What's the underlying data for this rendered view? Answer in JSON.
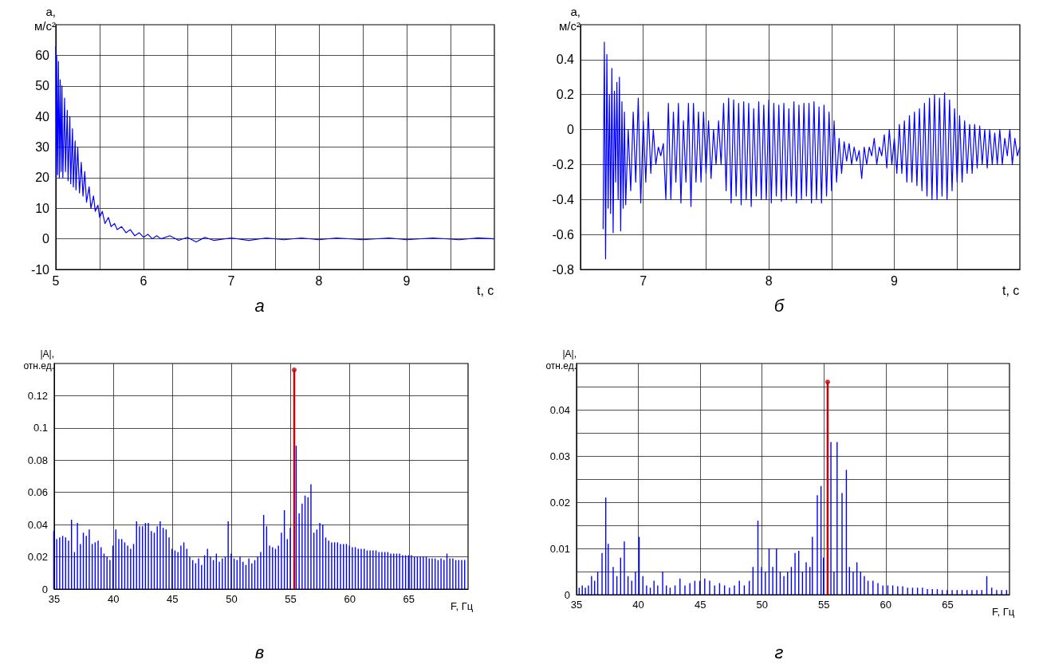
{
  "chart_data": [
    {
      "type": "line",
      "ylabel": "a,\nм/с²",
      "xlabel": "t, с",
      "annotations": [
        "а"
      ],
      "xlim": [
        5,
        10
      ],
      "xticks": [
        5,
        {
          "value": 5.5,
          "label": null
        },
        6,
        {
          "value": 6.5,
          "label": null
        },
        7,
        {
          "value": 7.5,
          "label": null
        },
        8,
        {
          "value": 8.5,
          "label": null
        },
        9,
        {
          "value": 9.5,
          "label": null
        }
      ],
      "ylim": [
        -10,
        70
      ],
      "yticks": [
        -10,
        0,
        10,
        20,
        30,
        40,
        50,
        60
      ],
      "grid": true,
      "marker": "none",
      "series": [
        {
          "color": "#0000ff",
          "x": [
            5.0,
            5.005,
            5.01,
            5.02,
            5.03,
            5.04,
            5.05,
            5.06,
            5.07,
            5.08,
            5.1,
            5.11,
            5.13,
            5.14,
            5.16,
            5.17,
            5.19,
            5.2,
            5.22,
            5.23,
            5.25,
            5.27,
            5.29,
            5.31,
            5.33,
            5.35,
            5.38,
            5.4,
            5.43,
            5.45,
            5.48,
            5.5,
            5.53,
            5.56,
            5.6,
            5.63,
            5.67,
            5.7,
            5.75,
            5.8,
            5.85,
            5.9,
            5.95,
            6.0,
            6.05,
            6.1,
            6.15,
            6.2,
            6.3,
            6.4,
            6.5,
            6.6,
            6.7,
            6.8,
            7.0,
            7.2,
            7.4,
            7.6,
            7.8,
            8.0,
            8.2,
            8.5,
            8.8,
            9.0,
            9.3,
            9.6,
            9.8,
            10.0
          ],
          "values": [
            63,
            20,
            60,
            21,
            58,
            20,
            52,
            22,
            50,
            20,
            46,
            22,
            42,
            19,
            40,
            18,
            36,
            17,
            32,
            16,
            30,
            15,
            25,
            14,
            22,
            12,
            17,
            10,
            14,
            9,
            11,
            7,
            9,
            5,
            7,
            4,
            5,
            3,
            4,
            2,
            3,
            1,
            2,
            0.5,
            1.5,
            0,
            1,
            0,
            1,
            -0.5,
            0.5,
            -1,
            0.5,
            -0.5,
            0.3,
            -0.5,
            0.3,
            -0.3,
            0.3,
            -0.3,
            0.3,
            -0.3,
            0.3,
            -0.3,
            0.3,
            -0.3,
            0.3,
            0
          ]
        }
      ]
    },
    {
      "type": "line",
      "ylabel": "a,\nм/с²",
      "xlabel": "t, с",
      "annotations": [
        "б"
      ],
      "xlim": [
        6.5,
        10
      ],
      "xticks": [
        {
          "value": 6.5,
          "label": null
        },
        7,
        {
          "value": 7.5,
          "label": null
        },
        8,
        {
          "value": 8.5,
          "label": null
        },
        9,
        {
          "value": 9.5,
          "label": null
        }
      ],
      "ylim": [
        -0.8,
        0.6
      ],
      "yticks": [
        -0.8,
        -0.6,
        -0.4,
        -0.2,
        0,
        0.2,
        0.4
      ],
      "grid": true,
      "marker": "none",
      "series": [
        {
          "color": "#0000ff",
          "x": [
            6.68,
            6.69,
            6.7,
            6.71,
            6.72,
            6.73,
            6.74,
            6.75,
            6.76,
            6.77,
            6.78,
            6.79,
            6.8,
            6.81,
            6.82,
            6.83,
            6.84,
            6.85,
            6.86,
            6.88,
            6.9,
            6.92,
            6.94,
            6.96,
            6.98,
            7.0,
            7.02,
            7.04,
            7.06,
            7.08,
            7.1,
            7.12,
            7.14,
            7.16,
            7.18,
            7.2,
            7.22,
            7.24,
            7.26,
            7.28,
            7.3,
            7.32,
            7.34,
            7.36,
            7.38,
            7.4,
            7.42,
            7.44,
            7.46,
            7.48,
            7.5,
            7.52,
            7.54,
            7.56,
            7.58,
            7.6,
            7.62,
            7.64,
            7.66,
            7.68,
            7.7,
            7.72,
            7.74,
            7.76,
            7.78,
            7.8,
            7.82,
            7.84,
            7.86,
            7.88,
            7.9,
            7.92,
            7.94,
            7.96,
            7.98,
            8.0,
            8.02,
            8.04,
            8.06,
            8.08,
            8.1,
            8.12,
            8.14,
            8.16,
            8.18,
            8.2,
            8.22,
            8.24,
            8.26,
            8.28,
            8.3,
            8.32,
            8.34,
            8.36,
            8.38,
            8.4,
            8.42,
            8.44,
            8.46,
            8.48,
            8.5,
            8.52,
            8.54,
            8.56,
            8.58,
            8.6,
            8.62,
            8.64,
            8.66,
            8.68,
            8.7,
            8.72,
            8.74,
            8.76,
            8.78,
            8.8,
            8.82,
            8.84,
            8.86,
            8.88,
            8.9,
            8.92,
            8.94,
            8.96,
            8.98,
            9.0,
            9.02,
            9.04,
            9.06,
            9.08,
            9.1,
            9.12,
            9.14,
            9.16,
            9.18,
            9.2,
            9.22,
            9.24,
            9.26,
            9.28,
            9.3,
            9.32,
            9.34,
            9.36,
            9.38,
            9.4,
            9.42,
            9.44,
            9.46,
            9.48,
            9.5,
            9.52,
            9.54,
            9.56,
            9.58,
            9.6,
            9.62,
            9.64,
            9.66,
            9.68,
            9.7,
            9.72,
            9.74,
            9.76,
            9.78,
            9.8,
            9.82,
            9.84,
            9.86,
            9.88,
            9.9,
            9.92,
            9.94,
            9.96,
            9.98,
            10.0
          ],
          "values": [
            -0.57,
            0.5,
            -0.74,
            0.43,
            -0.45,
            0.2,
            -0.48,
            0.35,
            -0.59,
            0.22,
            -0.3,
            0.27,
            -0.4,
            0.3,
            -0.58,
            0.16,
            -0.45,
            0.1,
            -0.43,
            0.0,
            -0.35,
            0.1,
            -0.3,
            0.18,
            -0.42,
            0.05,
            -0.3,
            0.1,
            -0.25,
            0.0,
            -0.2,
            -0.1,
            -0.15,
            -0.08,
            -0.4,
            0.15,
            -0.4,
            0.1,
            -0.3,
            0.15,
            -0.42,
            0.05,
            -0.3,
            0.15,
            -0.44,
            0.15,
            -0.3,
            0.1,
            -0.3,
            0.1,
            -0.25,
            0.05,
            -0.28,
            0.0,
            -0.2,
            0.05,
            -0.2,
            0.15,
            -0.35,
            0.18,
            -0.42,
            0.17,
            -0.38,
            0.15,
            -0.43,
            0.16,
            -0.4,
            0.15,
            -0.44,
            0.12,
            -0.38,
            0.16,
            -0.4,
            0.14,
            -0.4,
            0.17,
            -0.42,
            0.15,
            -0.38,
            0.14,
            -0.41,
            0.15,
            -0.4,
            0.12,
            -0.38,
            0.16,
            -0.42,
            0.14,
            -0.4,
            0.15,
            -0.38,
            0.15,
            -0.42,
            0.16,
            -0.4,
            0.13,
            -0.42,
            0.14,
            -0.38,
            0.1,
            -0.35,
            0.05,
            -0.3,
            -0.05,
            -0.25,
            -0.07,
            -0.18,
            -0.08,
            -0.2,
            -0.1,
            -0.18,
            -0.12,
            -0.28,
            -0.1,
            -0.2,
            -0.1,
            -0.15,
            -0.05,
            -0.2,
            -0.1,
            -0.15,
            -0.03,
            -0.22,
            0.0,
            -0.2,
            -0.05,
            -0.25,
            0.03,
            -0.25,
            0.05,
            -0.3,
            0.08,
            -0.3,
            0.1,
            -0.32,
            0.12,
            -0.35,
            0.15,
            -0.38,
            0.18,
            -0.4,
            0.2,
            -0.4,
            0.18,
            -0.38,
            0.21,
            -0.4,
            0.17,
            -0.35,
            0.12,
            -0.3,
            0.08,
            -0.3,
            0.05,
            -0.25,
            0.03,
            -0.25,
            0.03,
            -0.22,
            0.02,
            -0.2,
            0.0,
            -0.22,
            0.0,
            -0.2,
            -0.02,
            -0.2,
            0.0,
            -0.2,
            -0.05,
            -0.15,
            0.0,
            -0.2,
            -0.05,
            -0.15,
            -0.1
          ]
        }
      ]
    },
    {
      "type": "bar",
      "ylabel": "|A|,\nотн.ед.",
      "xlabel": "F, Гц",
      "annotations": [
        "в"
      ],
      "xlim": [
        35,
        70
      ],
      "xticks": [
        35,
        40,
        45,
        50,
        55,
        60,
        65
      ],
      "ylim": [
        0,
        0.14
      ],
      "yticks": [
        0,
        0.02,
        0.04,
        0.06,
        0.08,
        0.1,
        0.12
      ],
      "grid": true,
      "series": [
        {
          "color": "#0000ff",
          "x": [
            35,
            35.25,
            35.5,
            35.75,
            36,
            36.25,
            36.5,
            36.75,
            37,
            37.25,
            37.5,
            37.75,
            38,
            38.25,
            38.5,
            38.75,
            39,
            39.25,
            39.5,
            39.75,
            40,
            40.25,
            40.5,
            40.75,
            41,
            41.25,
            41.5,
            41.75,
            42,
            42.25,
            42.5,
            42.75,
            43,
            43.25,
            43.5,
            43.75,
            44,
            44.25,
            44.5,
            44.75,
            45,
            45.25,
            45.5,
            45.75,
            46,
            46.25,
            46.5,
            46.75,
            47,
            47.25,
            47.5,
            47.75,
            48,
            48.25,
            48.5,
            48.75,
            49,
            49.25,
            49.5,
            49.75,
            50,
            50.25,
            50.5,
            50.75,
            51,
            51.25,
            51.5,
            51.75,
            52,
            52.25,
            52.5,
            52.75,
            53,
            53.25,
            53.5,
            53.75,
            54,
            54.25,
            54.5,
            54.75,
            55,
            55.5,
            55.75,
            56,
            56.25,
            56.5,
            56.75,
            57,
            57.25,
            57.5,
            57.75,
            58,
            58.25,
            58.5,
            58.75,
            59,
            59.25,
            59.5,
            59.75,
            60,
            60.25,
            60.5,
            60.75,
            61,
            61.25,
            61.5,
            61.75,
            62,
            62.25,
            62.5,
            62.75,
            63,
            63.25,
            63.5,
            63.75,
            64,
            64.25,
            64.5,
            64.75,
            65,
            65.25,
            65.5,
            65.75,
            66,
            66.25,
            66.5,
            66.75,
            67,
            67.25,
            67.5,
            67.75,
            68,
            68.25,
            68.5,
            68.75,
            69,
            69.25,
            69.5,
            69.75
          ],
          "values": [
            0.036,
            0.031,
            0.032,
            0.033,
            0.032,
            0.03,
            0.043,
            0.023,
            0.041,
            0.028,
            0.035,
            0.033,
            0.037,
            0.028,
            0.029,
            0.03,
            0.026,
            0.022,
            0.02,
            0.018,
            0.027,
            0.037,
            0.031,
            0.031,
            0.029,
            0.027,
            0.025,
            0.028,
            0.042,
            0.039,
            0.039,
            0.041,
            0.041,
            0.036,
            0.035,
            0.039,
            0.042,
            0.038,
            0.037,
            0.032,
            0.025,
            0.024,
            0.023,
            0.027,
            0.029,
            0.025,
            0.02,
            0.018,
            0.016,
            0.019,
            0.015,
            0.021,
            0.025,
            0.02,
            0.018,
            0.022,
            0.017,
            0.019,
            0.02,
            0.042,
            0.022,
            0.019,
            0.018,
            0.02,
            0.017,
            0.015,
            0.019,
            0.016,
            0.018,
            0.02,
            0.023,
            0.046,
            0.039,
            0.027,
            0.026,
            0.025,
            0.027,
            0.035,
            0.049,
            0.031,
            0.038,
            0.089,
            0.047,
            0.053,
            0.058,
            0.057,
            0.065,
            0.035,
            0.037,
            0.041,
            0.04,
            0.032,
            0.03,
            0.029,
            0.029,
            0.029,
            0.028,
            0.028,
            0.028,
            0.027,
            0.026,
            0.026,
            0.025,
            0.025,
            0.025,
            0.024,
            0.024,
            0.024,
            0.024,
            0.023,
            0.023,
            0.023,
            0.023,
            0.022,
            0.022,
            0.022,
            0.022,
            0.021,
            0.021,
            0.021,
            0.021,
            0.02,
            0.02,
            0.02,
            0.02,
            0.02,
            0.019,
            0.019,
            0.019,
            0.018,
            0.019,
            0.018,
            0.022,
            0.019,
            0.019,
            0.018,
            0.018,
            0.018,
            0.018
          ]
        },
        {
          "type": "lollipop",
          "color": "#cc0000",
          "marker": "circle",
          "x": [
            55.3
          ],
          "values": [
            0.136
          ]
        }
      ]
    },
    {
      "type": "bar",
      "ylabel": "|A|,\nотн.ед.",
      "xlabel": "F, Гц",
      "annotations": [
        "г"
      ],
      "xlim": [
        35,
        70
      ],
      "xticks": [
        35,
        40,
        45,
        50,
        55,
        60,
        65
      ],
      "ylim": [
        0,
        0.05
      ],
      "yticks": [
        0,
        {
          "value": 0.005,
          "label": null
        },
        0.01,
        {
          "value": 0.015,
          "label": null
        },
        0.02,
        {
          "value": 0.025,
          "label": null
        },
        0.03,
        {
          "value": 0.035,
          "label": null
        },
        0.04,
        {
          "value": 0.045,
          "label": null
        }
      ],
      "grid": true,
      "series": [
        {
          "color": "#0000ff",
          "x": [
            35.25,
            35.5,
            35.75,
            36,
            36.25,
            36.5,
            36.75,
            37.1,
            37.4,
            37.6,
            38,
            38.3,
            38.6,
            38.9,
            39.2,
            39.5,
            39.8,
            40.1,
            40.4,
            40.7,
            41,
            41.3,
            41.6,
            42,
            42.3,
            42.6,
            43,
            43.4,
            43.8,
            44.2,
            44.6,
            45,
            45.4,
            45.8,
            46.2,
            46.6,
            47,
            47.4,
            47.8,
            48.2,
            48.6,
            49,
            49.3,
            49.7,
            50,
            50.3,
            50.6,
            50.9,
            51.2,
            51.5,
            51.8,
            52.1,
            52.4,
            52.7,
            53,
            53.3,
            53.6,
            53.9,
            54.1,
            54.5,
            54.8,
            55,
            55.6,
            55.85,
            56.1,
            56.5,
            56.85,
            57.1,
            57.4,
            57.7,
            58,
            58.3,
            58.6,
            59,
            59.4,
            59.8,
            60.2,
            60.6,
            61,
            61.4,
            61.8,
            62.2,
            62.6,
            63,
            63.4,
            63.8,
            64.2,
            64.6,
            65,
            65.4,
            65.8,
            66.2,
            66.6,
            67,
            67.4,
            67.8,
            68.2,
            68.6,
            69,
            69.4,
            69.8
          ],
          "values": [
            0.0015,
            0.002,
            0.0015,
            0.002,
            0.004,
            0.003,
            0.005,
            0.009,
            0.021,
            0.011,
            0.006,
            0.004,
            0.008,
            0.0115,
            0.004,
            0.003,
            0.005,
            0.0125,
            0.004,
            0.002,
            0.0015,
            0.003,
            0.002,
            0.005,
            0.002,
            0.0015,
            0.002,
            0.0035,
            0.002,
            0.0025,
            0.003,
            0.003,
            0.0035,
            0.003,
            0.002,
            0.0025,
            0.002,
            0.0015,
            0.002,
            0.003,
            0.002,
            0.003,
            0.006,
            0.016,
            0.006,
            0.005,
            0.01,
            0.006,
            0.01,
            0.005,
            0.004,
            0.005,
            0.006,
            0.009,
            0.0095,
            0.005,
            0.007,
            0.006,
            0.0125,
            0.0215,
            0.0235,
            0.008,
            0.033,
            0.005,
            0.033,
            0.022,
            0.027,
            0.006,
            0.005,
            0.007,
            0.005,
            0.004,
            0.003,
            0.003,
            0.0025,
            0.002,
            0.002,
            0.002,
            0.0018,
            0.0018,
            0.0015,
            0.0015,
            0.0015,
            0.0015,
            0.0012,
            0.0012,
            0.0012,
            0.001,
            0.001,
            0.001,
            0.001,
            0.001,
            0.001,
            0.001,
            0.001,
            0.001,
            0.004,
            0.0015,
            0.001,
            0.001,
            0.001
          ]
        },
        {
          "type": "lollipop",
          "color": "#cc0000",
          "marker": "circle",
          "x": [
            55.3
          ],
          "values": [
            0.046
          ]
        }
      ]
    }
  ]
}
